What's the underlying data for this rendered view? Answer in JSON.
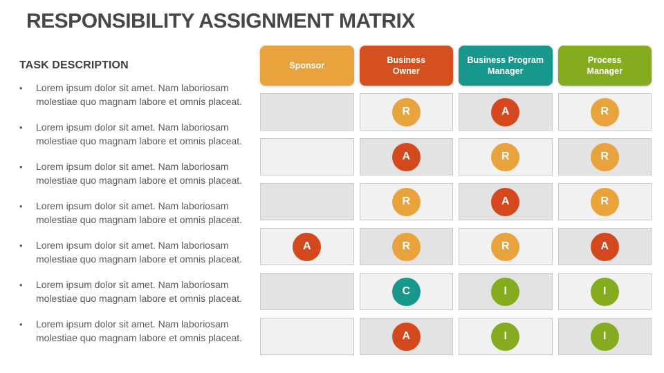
{
  "title": "RESPONSIBILITY ASSIGNMENT MATRIX",
  "task_section": {
    "heading": "TASK DESCRIPTION",
    "bullet_glyph": "•",
    "items": [
      "Lorem ipsum dolor sit amet. Nam laboriosam molestiae quo magnam labore et omnis placeat.",
      "Lorem ipsum dolor sit amet. Nam laboriosam molestiae quo magnam labore et omnis placeat.",
      "Lorem ipsum dolor sit amet. Nam laboriosam molestiae quo magnam labore et omnis placeat.",
      "Lorem ipsum dolor sit amet. Nam laboriosam molestiae quo magnam labore et omnis placeat.",
      "Lorem ipsum dolor sit amet. Nam laboriosam molestiae quo magnam labore et omnis placeat.",
      "Lorem ipsum dolor sit amet. Nam laboriosam molestiae quo magnam labore et omnis placeat.",
      "Lorem ipsum dolor sit amet. Nam laboriosam molestiae quo magnam labore et omnis placeat."
    ]
  },
  "matrix": {
    "columns": [
      {
        "label": "Sponsor",
        "lines": [
          "Sponsor"
        ],
        "color": "#E8A33C"
      },
      {
        "label": "Business Owner",
        "lines": [
          "Business",
          "Owner"
        ],
        "color": "#D4501E"
      },
      {
        "label": "Business Program Manager",
        "lines": [
          "Business Program",
          "Manager"
        ],
        "color": "#18978C"
      },
      {
        "label": "Process Manager",
        "lines": [
          "Process",
          "Manager"
        ],
        "color": "#85AC1E"
      }
    ],
    "raci_colors": {
      "R": "#E8A33C",
      "A": "#D4481D",
      "C": "#18978C",
      "I": "#85AC1E"
    },
    "rows": [
      [
        "",
        "R",
        "A",
        "R"
      ],
      [
        "",
        "A",
        "R",
        "R"
      ],
      [
        "",
        "R",
        "A",
        "R"
      ],
      [
        "A",
        "R",
        "R",
        "A"
      ],
      [
        "",
        "C",
        "I",
        "I"
      ],
      [
        "",
        "A",
        "I",
        "I"
      ]
    ],
    "cell_background_light": "#F1F1F1",
    "cell_background_dark": "#E3E3E3"
  }
}
